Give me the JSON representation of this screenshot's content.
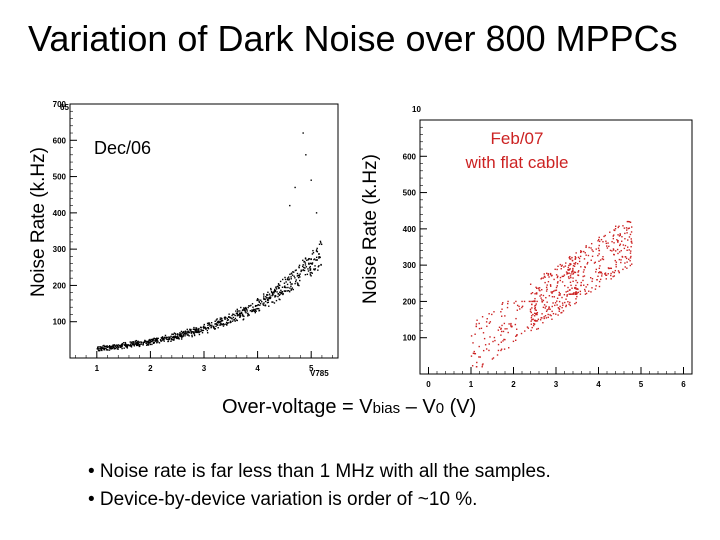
{
  "title": "Variation of Dark Noise over 800 MPPCs",
  "ylabel": "Noise Rate (k.Hz)",
  "xlabel_parts": {
    "pre": "Over-voltage = V",
    "sub1": "bias",
    "mid": " – V",
    "sub2": "0",
    "post": " (V)"
  },
  "bullets": [
    "• Noise rate is far less than 1 MHz with all the samples.",
    "• Device-by-device variation is order of ~10 %."
  ],
  "colors": {
    "left_points": "#000000",
    "right_points": "#cc2222",
    "annotation_right": "#cc2222"
  },
  "chart_data": [
    {
      "type": "scatter",
      "name": "Dec/06",
      "annotation": "Dec/06",
      "xlim": [
        0.5,
        5.5
      ],
      "ylim": [
        0,
        700
      ],
      "xticks": [
        1,
        2,
        3,
        4,
        5
      ],
      "yticks": [
        100,
        200,
        300,
        400,
        500,
        600,
        700
      ],
      "xtick_labels": [
        "1",
        "2",
        "3",
        "4",
        "5"
      ],
      "ytick_labels": [
        "100",
        "200",
        "300",
        "400",
        "500",
        "600",
        "700"
      ],
      "xlabel_small": "V785",
      "ylabel_small": "65",
      "trend": {
        "form": "exponential",
        "x_range": [
          1,
          5.2
        ],
        "y_at_1": 25,
        "y_at_5": 260,
        "spread_fraction": 0.12
      },
      "extra_points": [
        [
          4.9,
          560
        ],
        [
          4.7,
          470
        ],
        [
          5.0,
          490
        ],
        [
          4.85,
          620
        ],
        [
          5.1,
          400
        ],
        [
          4.6,
          420
        ]
      ]
    },
    {
      "type": "scatter",
      "name": "Feb/07",
      "annotation": "Feb/07\nwith flat cable",
      "xlim": [
        -0.2,
        6.2
      ],
      "ylim": [
        0,
        700
      ],
      "xticks": [
        0,
        1,
        2,
        3,
        4,
        5,
        6
      ],
      "yticks": [
        100,
        200,
        300,
        400,
        500,
        600
      ],
      "xtick_labels": [
        "0",
        "1",
        "2",
        "3",
        "4",
        "5",
        "6"
      ],
      "ytick_labels": [
        "100",
        "200",
        "300",
        "400",
        "500",
        "600"
      ],
      "ylabel_small": "10",
      "clusters": [
        {
          "x_range": [
            1.0,
            2.6
          ],
          "y_range": [
            20,
            200
          ]
        },
        {
          "x_range": [
            2.4,
            3.5
          ],
          "y_range": [
            120,
            360
          ]
        },
        {
          "x_range": [
            3.3,
            4.8
          ],
          "y_range": [
            220,
            420
          ]
        }
      ],
      "trend": {
        "form": "linear",
        "x_range": [
          0.9,
          4.9
        ],
        "y_at_start": 60,
        "y_at_end": 380
      }
    }
  ]
}
